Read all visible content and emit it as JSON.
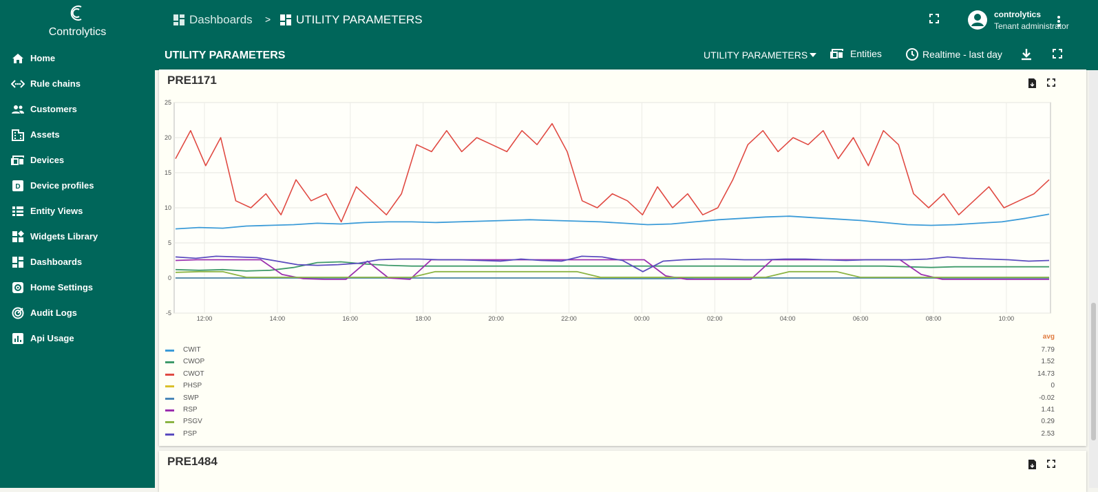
{
  "app": {
    "logo_text": "Controlytics"
  },
  "sidebar": {
    "items": [
      {
        "label": "Home",
        "icon": "home-icon"
      },
      {
        "label": "Rule chains",
        "icon": "rule-chains-icon"
      },
      {
        "label": "Customers",
        "icon": "customers-icon"
      },
      {
        "label": "Assets",
        "icon": "assets-icon"
      },
      {
        "label": "Devices",
        "icon": "devices-icon"
      },
      {
        "label": "Device profiles",
        "icon": "device-profiles-icon"
      },
      {
        "label": "Entity Views",
        "icon": "entity-views-icon"
      },
      {
        "label": "Widgets Library",
        "icon": "widgets-library-icon"
      },
      {
        "label": "Dashboards",
        "icon": "dashboards-icon"
      },
      {
        "label": "Home Settings",
        "icon": "settings-icon"
      },
      {
        "label": "Audit Logs",
        "icon": "audit-logs-icon"
      },
      {
        "label": "Api Usage",
        "icon": "api-usage-icon"
      }
    ]
  },
  "header": {
    "breadcrumb": [
      "Dashboards",
      "UTILITY PARAMETERS"
    ],
    "separator": ">",
    "user_name": "controlytics",
    "user_role": "Tenant administrator"
  },
  "dashboard": {
    "title": "UTILITY PARAMETERS",
    "state_select": "UTILITY PARAMETERS",
    "entities_label": "Entities",
    "timewindow_label": "Realtime - last day"
  },
  "widgets": [
    {
      "title": "PRE1171"
    },
    {
      "title": "PRE1484"
    }
  ],
  "colors": {
    "primary": "#00665a",
    "CWIT": "#3b9bd8",
    "CWOP": "#3f9a6a",
    "CWOT": "#e04a42",
    "PHSP": "#d9c02b",
    "SWP": "#4a87b8",
    "RSP": "#9b2fae",
    "PSGV": "#8bb444",
    "PSP": "#5a4bbf"
  },
  "chart_data": {
    "type": "line",
    "x_ticks": [
      "12:00",
      "14:00",
      "16:00",
      "18:00",
      "20:00",
      "22:00",
      "00:00",
      "02:00",
      "04:00",
      "06:00",
      "08:00",
      "10:00"
    ],
    "ylim": [
      -5,
      25
    ],
    "y_ticks": [
      "25",
      "20",
      "15",
      "10",
      "5",
      "0",
      "-5"
    ],
    "grid": true,
    "legend_placement": "bottom",
    "legend_value_header": "avg",
    "series": [
      {
        "name": "CWIT",
        "avg": "7.79",
        "values": [
          7.0,
          7.2,
          7.1,
          7.4,
          7.5,
          7.6,
          7.8,
          7.7,
          7.9,
          8.0,
          8.0,
          7.9,
          8.0,
          8.1,
          8.2,
          8.3,
          8.2,
          8.1,
          8.0,
          7.8,
          7.6,
          7.7,
          8.0,
          8.3,
          8.5,
          8.7,
          8.8,
          8.6,
          8.4,
          8.2,
          7.9,
          7.6,
          7.5,
          7.6,
          7.8,
          8.0,
          8.5,
          9.1
        ]
      },
      {
        "name": "CWOP",
        "avg": "1.52",
        "values": [
          1.2,
          1.1,
          1.2,
          1.0,
          1.1,
          1.5,
          2.2,
          2.3,
          2.0,
          1.8,
          1.7,
          1.7,
          1.7,
          1.7,
          1.7,
          1.7,
          1.7,
          1.7,
          1.7,
          1.7,
          1.7,
          1.7,
          1.7,
          1.7,
          1.7,
          1.7,
          1.7,
          1.7,
          1.7,
          1.7,
          1.7,
          1.6,
          1.5,
          1.6,
          1.6,
          1.6,
          1.6,
          1.6
        ]
      },
      {
        "name": "CWOT",
        "avg": "14.73",
        "values": [
          17,
          21,
          16,
          20,
          11,
          10,
          12,
          9,
          14,
          11,
          12,
          8,
          13,
          11,
          9,
          12,
          19,
          18,
          21,
          18,
          20,
          19,
          18,
          21,
          19,
          22,
          18,
          11,
          10,
          12,
          11,
          9,
          13,
          10,
          12,
          9,
          10,
          14,
          19,
          21,
          18,
          20,
          19,
          21,
          17,
          20,
          16,
          21,
          19,
          12,
          10,
          12,
          9,
          11,
          13,
          10,
          11,
          12,
          14
        ]
      },
      {
        "name": "PHSP",
        "avg": "0",
        "values": [
          0,
          0,
          0,
          0,
          0,
          0,
          0,
          0,
          0,
          0,
          0,
          0,
          0,
          0,
          0,
          0,
          0,
          0,
          0,
          0,
          0,
          0,
          0,
          0,
          0,
          0,
          0,
          0,
          0,
          0,
          0,
          0,
          0,
          0,
          0,
          0,
          0,
          0
        ]
      },
      {
        "name": "SWP",
        "avg": "-0.02",
        "values": [
          0,
          0,
          0,
          0,
          0,
          0,
          0,
          0,
          0,
          0,
          0,
          0,
          0,
          0,
          0,
          0,
          0,
          0,
          -0.1,
          -0.1,
          -0.1,
          -0.1,
          0,
          0,
          0,
          0,
          0,
          0,
          0,
          0,
          0,
          0,
          0,
          0,
          0,
          0,
          0,
          0
        ]
      },
      {
        "name": "RSP",
        "avg": "1.41",
        "values": [
          2.5,
          2.6,
          2.6,
          2.6,
          2.6,
          0.5,
          -0.1,
          -0.2,
          -0.2,
          2.4,
          0.0,
          -0.2,
          2.6,
          2.6,
          2.6,
          2.6,
          2.6,
          2.6,
          2.6,
          2.6,
          2.6,
          2.6,
          2.6,
          0.3,
          -0.2,
          -0.2,
          -0.2,
          -0.2,
          2.6,
          2.6,
          2.6,
          2.6,
          2.6,
          2.6,
          2.6,
          0.5,
          -0.2,
          -0.2,
          -0.2,
          -0.2,
          -0.2,
          -0.2
        ]
      },
      {
        "name": "PSGV",
        "avg": "0.29",
        "values": [
          0.8,
          0.9,
          0.9,
          0.1,
          0.1,
          0.1,
          0.1,
          0.1,
          0.1,
          0.1,
          0.1,
          0.9,
          0.9,
          0.9,
          0.9,
          0.9,
          0.9,
          0.9,
          0.1,
          0.1,
          0.1,
          0.1,
          0.1,
          0.1,
          0.1,
          0.1,
          0.9,
          0.9,
          0.9,
          0.1,
          0.1,
          0.1,
          0.1,
          0.1,
          0.1,
          0.1,
          0.1,
          0.1
        ]
      },
      {
        "name": "PSP",
        "avg": "2.53",
        "values": [
          3.0,
          2.8,
          3.1,
          3.0,
          2.9,
          2.4,
          1.9,
          1.8,
          1.9,
          2.1,
          2.6,
          2.7,
          2.7,
          2.6,
          2.6,
          2.5,
          2.4,
          2.7,
          2.5,
          2.4,
          3.1,
          3.0,
          2.5,
          0.9,
          2.4,
          2.6,
          2.7,
          2.7,
          2.6,
          2.6,
          2.7,
          2.7,
          2.6,
          2.5,
          2.6,
          2.6,
          2.6,
          2.7,
          3.0,
          2.8,
          2.7,
          2.6,
          2.4,
          2.5
        ]
      }
    ]
  }
}
